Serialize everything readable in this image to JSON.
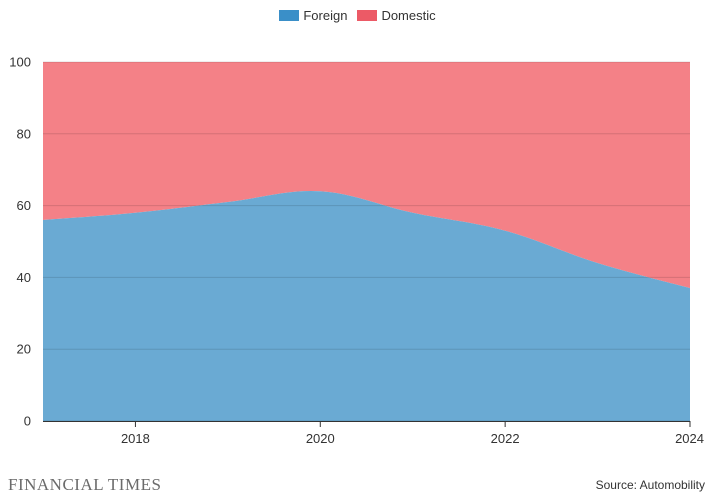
{
  "chart_data": {
    "type": "area",
    "stacked": true,
    "x": [
      2017,
      2018,
      2019,
      2020,
      2021,
      2022,
      2023,
      2024
    ],
    "series": [
      {
        "name": "Foreign",
        "color": "#3a8fc8",
        "fill": "#6aaad3",
        "values": [
          56,
          58,
          61,
          64,
          58,
          53,
          44,
          37
        ]
      },
      {
        "name": "Domestic",
        "color": "#ec5a66",
        "fill": "#f48187",
        "values": [
          44,
          42,
          39,
          36,
          42,
          47,
          56,
          63
        ]
      }
    ],
    "xlim": [
      2017,
      2024
    ],
    "ylim": [
      0,
      100
    ],
    "x_ticks": [
      "2018",
      "2020",
      "2022",
      "2024"
    ],
    "y_ticks": [
      "0",
      "20",
      "40",
      "60",
      "80",
      "100"
    ],
    "legend_position": "top-center",
    "grid": true
  },
  "footer": {
    "logo": "FINANCIAL TIMES",
    "source": "Source: Automobility"
  }
}
